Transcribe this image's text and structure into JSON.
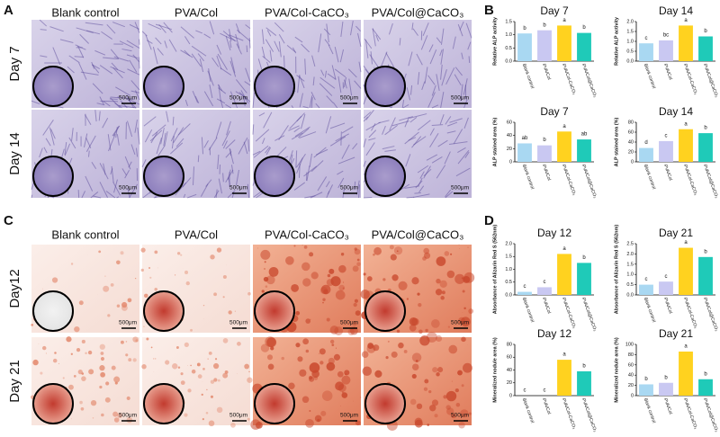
{
  "panel_a": {
    "label": "A",
    "columns": [
      "Blank control",
      "PVA/Col",
      "PVA/Col-CaCO₃",
      "PVA/Col@CaCO₃"
    ],
    "rows": [
      "Day 7",
      "Day 14"
    ],
    "scale_bar": "500μm"
  },
  "panel_b": {
    "label": "B"
  },
  "panel_c": {
    "label": "C",
    "columns": [
      "Blank control",
      "PVA/Col",
      "PVA/Col-CaCO₃",
      "PVA/Col@CaCO₃"
    ],
    "rows": [
      "Day12",
      "Day 21"
    ],
    "scale_bar": "500μm"
  },
  "panel_d": {
    "label": "D"
  },
  "chart_data": [
    {
      "type": "bar",
      "title": "Day 7",
      "y_label": "Relative ALP activity",
      "categories": [
        "Blank control",
        "PVA/Col",
        "PVA/Col-CaCO₃",
        "PVA/Col@CaCO₃"
      ],
      "values": [
        1.05,
        1.17,
        1.35,
        1.07
      ],
      "letters": [
        "b",
        "b",
        "a",
        "b"
      ],
      "colors": [
        "#a9d8f2",
        "#c9c8f2",
        "#ffd21f",
        "#1fcab8"
      ],
      "ylim": [
        0,
        1.5
      ],
      "yticks": [
        {
          "value": 0,
          "label": "0.0"
        },
        0.5,
        {
          "value": 1,
          "label": "1.0"
        },
        1.5
      ]
    },
    {
      "type": "bar",
      "title": "Day 14",
      "y_label": "Relative ALP activity",
      "categories": [
        "Blank control",
        "PVA/Col",
        "PVA/Col-CaCO₃",
        "PVA/Col@CaCO₃"
      ],
      "values": [
        0.9,
        1.05,
        1.8,
        1.25
      ],
      "letters": [
        "c",
        "bc",
        "a",
        "b"
      ],
      "colors": [
        "#a9d8f2",
        "#c9c8f2",
        "#ffd21f",
        "#1fcab8"
      ],
      "ylim": [
        0,
        2
      ],
      "yticks": [
        {
          "value": 0,
          "label": "0.0"
        },
        0.5,
        {
          "value": 1,
          "label": "1.0"
        },
        1.5,
        {
          "value": 2,
          "label": "2.0"
        }
      ]
    },
    {
      "type": "bar",
      "title": "Day 7",
      "y_label": "ALP stained area (%)",
      "categories": [
        "Blank control",
        "PVA/Col",
        "PVA/Col-CaCO₃",
        "PVA/Col@CaCO₃"
      ],
      "values": [
        28,
        25,
        46,
        34
      ],
      "letters": [
        "ab",
        "b",
        "a",
        "ab"
      ],
      "colors": [
        "#a9d8f2",
        "#c9c8f2",
        "#ffd21f",
        "#1fcab8"
      ],
      "ylim": [
        0,
        60
      ],
      "yticks": [
        0,
        20,
        40,
        60
      ]
    },
    {
      "type": "bar",
      "title": "Day 14",
      "y_label": "ALP stained area (%)",
      "categories": [
        "Blank control",
        "PVA/Col",
        "PVA/Col-CaCO₃",
        "PVA/Col@CaCO₃"
      ],
      "values": [
        28,
        42,
        66,
        58
      ],
      "letters": [
        "d",
        "c",
        "a",
        "b"
      ],
      "colors": [
        "#a9d8f2",
        "#c9c8f2",
        "#ffd21f",
        "#1fcab8"
      ],
      "ylim": [
        0,
        80
      ],
      "yticks": [
        0,
        20,
        40,
        60,
        80
      ]
    },
    {
      "type": "bar",
      "title": "Day 12",
      "y_label": "Absorbance of Alizarin Red S (562nm)",
      "categories": [
        "Blank control",
        "PVA/Col",
        "PVA/Col-CaCO₃",
        "PVA/Col@CaCO₃"
      ],
      "values": [
        0.12,
        0.3,
        1.6,
        1.25
      ],
      "letters": [
        "c",
        "c",
        "a",
        "b"
      ],
      "colors": [
        "#a9d8f2",
        "#c9c8f2",
        "#ffd21f",
        "#1fcab8"
      ],
      "ylim": [
        0,
        2
      ],
      "yticks": [
        {
          "value": 0,
          "label": "0.0"
        },
        0.5,
        {
          "value": 1,
          "label": "1.0"
        },
        1.5,
        {
          "value": 2,
          "label": "2.0"
        }
      ]
    },
    {
      "type": "bar",
      "title": "Day 21",
      "y_label": "Absorbance of Alizarin Red S (562nm)",
      "categories": [
        "Blank control",
        "PVA/Col",
        "PVA/Col-CaCO₃",
        "PVA/Col@CaCO₃"
      ],
      "values": [
        0.5,
        0.65,
        2.3,
        1.85
      ],
      "letters": [
        "c",
        "c",
        "a",
        "b"
      ],
      "colors": [
        "#a9d8f2",
        "#c9c8f2",
        "#ffd21f",
        "#1fcab8"
      ],
      "ylim": [
        0,
        2.5
      ],
      "yticks": [
        {
          "value": 0,
          "label": "0.0"
        },
        0.5,
        {
          "value": 1,
          "label": "1.0"
        },
        1.5,
        {
          "value": 2,
          "label": "2.0"
        },
        2.5
      ]
    },
    {
      "type": "bar",
      "title": "Day 12",
      "y_label": "Mineralized nodule area (%)",
      "categories": [
        "Blank control",
        "PVA/Col",
        "PVA/Col-CaCO₃",
        "PVA/Col@CaCO₃"
      ],
      "values": [
        0,
        0,
        56,
        38
      ],
      "letters": [
        "c",
        "c",
        "a",
        "b"
      ],
      "colors": [
        "#a9d8f2",
        "#c9c8f2",
        "#ffd21f",
        "#1fcab8"
      ],
      "ylim": [
        0,
        80
      ],
      "yticks": [
        0,
        20,
        40,
        60,
        80
      ]
    },
    {
      "type": "bar",
      "title": "Day 21",
      "y_label": "Mineralized nodule area (%)",
      "categories": [
        "Blank control",
        "PVA/Col",
        "PVA/Col-CaCO₃",
        "PVA/Col@CaCO₃"
      ],
      "values": [
        22,
        25,
        86,
        32
      ],
      "letters": [
        "b",
        "b",
        "a",
        "b"
      ],
      "colors": [
        "#a9d8f2",
        "#c9c8f2",
        "#ffd21f",
        "#1fcab8"
      ],
      "ylim": [
        0,
        100
      ],
      "yticks": [
        0,
        20,
        40,
        60,
        80,
        100
      ]
    }
  ]
}
